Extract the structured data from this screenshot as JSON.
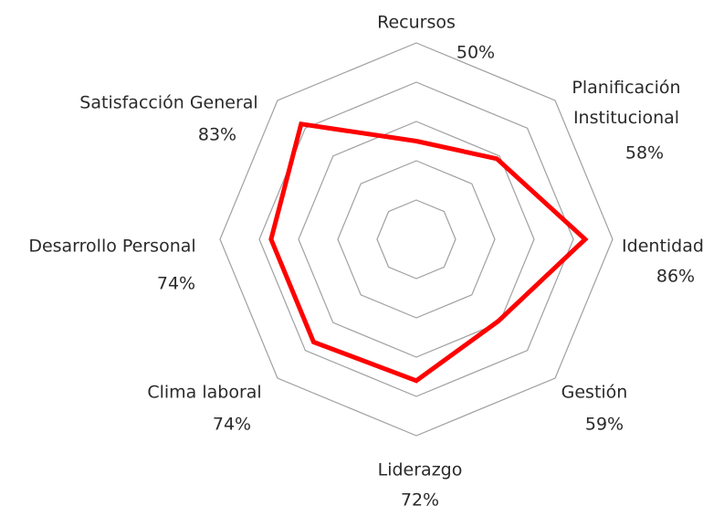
{
  "chart_data": {
    "type": "radar",
    "categories": [
      "Recursos",
      "Planificación Institucional",
      "Identidad",
      "Gestión",
      "Liderazgo",
      "Clima laboral",
      "Desarrollo Personal",
      "Satisfacción General"
    ],
    "values": [
      50,
      58,
      86,
      59,
      72,
      74,
      74,
      83
    ],
    "value_labels": [
      "50%",
      "58%",
      "86%",
      "59%",
      "72%",
      "74%",
      "74%",
      "83%"
    ],
    "color": "#ff0000",
    "rlim": [
      0,
      100
    ],
    "rticks": [
      20,
      40,
      60,
      80,
      100
    ],
    "grid": true
  }
}
